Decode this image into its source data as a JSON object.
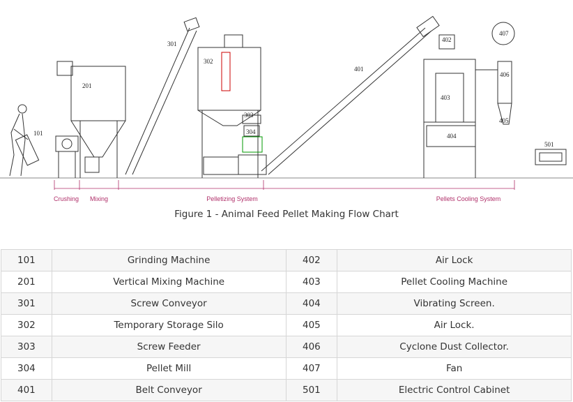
{
  "diagram": {
    "systems": [
      "Crushing",
      "Mixing",
      "Pelletizing System",
      "Pellets Cooling System"
    ],
    "labels": [
      "101",
      "201",
      "301",
      "302",
      "303",
      "304",
      "401",
      "402",
      "403",
      "404",
      "405",
      "406",
      "407",
      "501"
    ]
  },
  "caption": "Figure 1 - Animal Feed Pellet Making Flow Chart",
  "table": {
    "rows": [
      [
        "101",
        "Grinding Machine",
        "402",
        "Air Lock"
      ],
      [
        "201",
        "Vertical Mixing Machine",
        "403",
        "Pellet Cooling Machine"
      ],
      [
        "301",
        "Screw Conveyor",
        "404",
        "Vibrating Screen."
      ],
      [
        "302",
        "Temporary Storage Silo",
        "405",
        "Air Lock."
      ],
      [
        "303",
        "Screw Feeder",
        "406",
        "Cyclone Dust Collector."
      ],
      [
        "304",
        "Pellet Mill",
        "407",
        "Fan"
      ],
      [
        "401",
        "Belt Conveyor",
        "501",
        "Electric Control Cabinet"
      ]
    ]
  }
}
